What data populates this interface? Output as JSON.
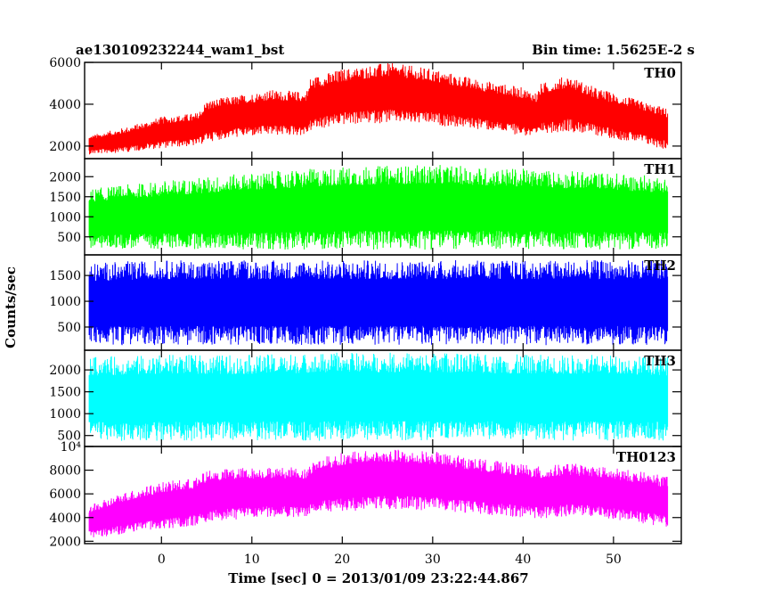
{
  "chart_data": {
    "type": "line",
    "title_left": "ae130109232244_wam1_bst",
    "title_right": "Bin time: 1.5625E-2 s",
    "xlabel": "Time [sec] 0 = 2013/01/09 23:22:44.867",
    "ylabel": "Counts/sec",
    "xlim": [
      -8.5,
      57.5
    ],
    "x_ticks": [
      0,
      10,
      20,
      30,
      40,
      50
    ],
    "x_data_range": [
      -8,
      56
    ],
    "grid": false,
    "panels": [
      {
        "name": "TH0",
        "color": "#ff0000",
        "ylim": [
          1400,
          6000
        ],
        "y_ticks": [
          2000,
          4000,
          6000
        ],
        "y_tick_labels": [
          "2000",
          "4000",
          "6000"
        ],
        "envelope": {
          "x": [
            -8,
            -4,
            0,
            4,
            5,
            8,
            12,
            16,
            16.5,
            20,
            25,
            30,
            35,
            40,
            41.5,
            42,
            45,
            48,
            52,
            56
          ],
          "min": [
            1600,
            1700,
            1900,
            2000,
            2200,
            2400,
            2500,
            2500,
            2700,
            3000,
            3100,
            3000,
            2800,
            2500,
            2300,
            2600,
            2700,
            2500,
            2200,
            1800
          ],
          "max": [
            2500,
            2900,
            3400,
            3600,
            4200,
            4400,
            4700,
            4600,
            5300,
            5700,
            6000,
            5700,
            5200,
            4800,
            4600,
            5000,
            5400,
            4800,
            4300,
            3800
          ]
        }
      },
      {
        "name": "TH1",
        "color": "#00ff00",
        "ylim": [
          50,
          2450
        ],
        "y_ticks": [
          500,
          1000,
          1500,
          2000
        ],
        "y_tick_labels": [
          "500",
          "1000",
          "1500",
          "2000"
        ],
        "envelope": {
          "x": [
            -8,
            0,
            10,
            20,
            30,
            40,
            50,
            56
          ],
          "min": [
            200,
            200,
            180,
            180,
            180,
            190,
            190,
            200
          ],
          "max": [
            1700,
            1900,
            2100,
            2250,
            2300,
            2200,
            2100,
            2000
          ]
        }
      },
      {
        "name": "TH2",
        "color": "#0000ff",
        "ylim": [
          50,
          1900
        ],
        "y_ticks": [
          500,
          1000,
          1500
        ],
        "y_tick_labels": [
          "500",
          "1000",
          "1500"
        ],
        "envelope": {
          "x": [
            -8,
            0,
            10,
            20,
            30,
            40,
            50,
            56
          ],
          "min": [
            150,
            150,
            150,
            150,
            150,
            150,
            150,
            150
          ],
          "max": [
            1750,
            1800,
            1800,
            1800,
            1800,
            1800,
            1800,
            1800
          ]
        }
      },
      {
        "name": "TH3",
        "color": "#00ffff",
        "ylim": [
          250,
          2450
        ],
        "y_ticks": [
          500,
          1000,
          1500,
          2000
        ],
        "y_tick_labels": [
          "500",
          "1000",
          "1500",
          "2000"
        ],
        "envelope": {
          "x": [
            -8,
            0,
            10,
            20,
            30,
            40,
            50,
            56
          ],
          "min": [
            380,
            380,
            380,
            380,
            380,
            380,
            380,
            380
          ],
          "max": [
            2300,
            2350,
            2350,
            2400,
            2400,
            2350,
            2350,
            2300
          ]
        }
      },
      {
        "name": "TH0123",
        "color": "#ff00ff",
        "ylim": [
          1800,
          10000
        ],
        "y_ticks": [
          2000,
          4000,
          6000,
          8000,
          10000
        ],
        "y_tick_labels": [
          "2000",
          "4000",
          "6000",
          "8000",
          "10⁴"
        ],
        "envelope": {
          "x": [
            -8,
            -4,
            0,
            4,
            5,
            8,
            12,
            16,
            17,
            20,
            25,
            30,
            35,
            40,
            42,
            45,
            48,
            52,
            56
          ],
          "min": [
            2200,
            2600,
            3000,
            3300,
            3600,
            3800,
            4000,
            4000,
            4300,
            4500,
            4700,
            4600,
            4300,
            4000,
            3900,
            4100,
            4000,
            3600,
            3200
          ],
          "max": [
            5000,
            6200,
            7000,
            7400,
            8000,
            8200,
            8300,
            8200,
            9000,
            9500,
            9800,
            9600,
            9000,
            8500,
            8300,
            8600,
            8400,
            8000,
            7500
          ]
        }
      }
    ]
  }
}
